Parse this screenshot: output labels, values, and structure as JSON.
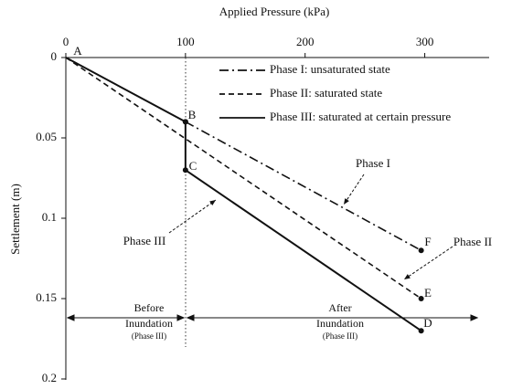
{
  "chart_data": {
    "type": "line",
    "x_label": "Applied Pressure (kPa)",
    "y_label": "Settlement (m)",
    "xlim": [
      0,
      350
    ],
    "xticks": [
      0,
      100,
      200,
      300
    ],
    "ylim": [
      0,
      0.2
    ],
    "yticks": [
      0,
      0.05,
      0.1,
      0.15,
      0.2
    ],
    "y_inverted": true,
    "x_axis_position": "top",
    "legend": "upper right",
    "series": [
      {
        "name": "Phase I: unsaturated state",
        "color": "#111111",
        "linestyle": "dashdot",
        "x": [
          100,
          297
        ],
        "values": [
          0.04,
          0.12
        ]
      },
      {
        "name": "Phase II: saturated state",
        "color": "#111111",
        "linestyle": "dashed",
        "x": [
          0,
          297
        ],
        "values": [
          0,
          0.15
        ]
      },
      {
        "name": "Phase III: saturated at certain pressure",
        "color": "#111111",
        "linestyle": "solid",
        "x": [
          0,
          100,
          100,
          297
        ],
        "values": [
          0,
          0.04,
          0.07,
          0.17
        ]
      }
    ],
    "point_labels": [
      "A",
      "B",
      "C",
      "D",
      "E",
      "F"
    ],
    "annotations": [
      "Phase I",
      "Phase II",
      "Phase III",
      "Before",
      "Inundation",
      "(Phase III)",
      "After",
      "Inundation",
      "(Phase III)"
    ]
  }
}
